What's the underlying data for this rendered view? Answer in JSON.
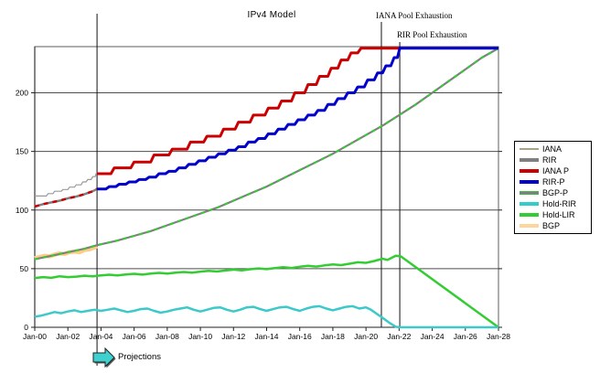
{
  "annotations": {
    "projections": "Projections"
  },
  "chart_data": {
    "type": "line",
    "title": "IPv4 Model",
    "xlabel": "",
    "ylabel": "",
    "x_unit": "years since Jan-2000",
    "x_range_years": [
      0,
      28
    ],
    "ylim": [
      0,
      239
    ],
    "y_ticks": [
      0,
      50,
      100,
      150,
      200
    ],
    "x_tick_labels": [
      "Jan-00",
      "Jan-02",
      "Jan-04",
      "Jan-06",
      "Jan-08",
      "Jan-10",
      "Jan-12",
      "Jan-14",
      "Jan-16",
      "Jan-18",
      "Jan-20",
      "Jan-22",
      "Jan-24",
      "Jan-26",
      "Jan-28"
    ],
    "grid": "horizontal",
    "legend_position": "right",
    "markers": [
      {
        "name": "projection-start",
        "t": 3.76,
        "label": ""
      },
      {
        "name": "iana-pool-exhaustion",
        "t": 20.93,
        "label": "IANA Pool Exhaustion"
      },
      {
        "name": "rir-pool-exhaustion",
        "t": 22.04,
        "label": "RIR Pool Exhaustion"
      }
    ],
    "series": [
      {
        "name": "BGP",
        "color": "#ffcc88",
        "width": 4.5,
        "points": [
          [
            0,
            59
          ],
          [
            0.3,
            60
          ],
          [
            0.6,
            61
          ],
          [
            0.9,
            60.5
          ],
          [
            1.2,
            62
          ],
          [
            1.5,
            63
          ],
          [
            1.8,
            62.5
          ],
          [
            2.1,
            64
          ],
          [
            2.4,
            64.5
          ],
          [
            2.7,
            64
          ],
          [
            3,
            66
          ],
          [
            3.3,
            66.5
          ],
          [
            3.6,
            68
          ],
          [
            3.76,
            69
          ]
        ]
      },
      {
        "name": "BGP-P",
        "color": "#7f7f7f",
        "width": 2.2,
        "overlay": "#33cc33",
        "dash": "4 5",
        "points": [
          [
            0,
            58
          ],
          [
            1,
            61
          ],
          [
            2,
            64
          ],
          [
            3,
            67
          ],
          [
            3.76,
            70
          ],
          [
            5,
            74
          ],
          [
            6,
            78
          ],
          [
            7,
            82
          ],
          [
            8,
            87
          ],
          [
            9,
            92
          ],
          [
            10,
            97
          ],
          [
            11,
            102
          ],
          [
            12,
            108
          ],
          [
            13,
            114
          ],
          [
            14,
            120
          ],
          [
            15,
            127
          ],
          [
            16,
            134
          ],
          [
            17,
            141
          ],
          [
            18,
            148
          ],
          [
            19,
            156
          ],
          [
            20,
            164
          ],
          [
            21,
            172
          ],
          [
            22,
            181
          ],
          [
            23,
            190
          ],
          [
            24,
            200
          ],
          [
            25,
            210
          ],
          [
            26,
            220
          ],
          [
            27,
            230
          ],
          [
            28,
            238
          ]
        ]
      },
      {
        "name": "RIR",
        "color": "#7f7f7f",
        "width": 2.5,
        "overlay": "#cc0000",
        "dash": "5 5",
        "points": [
          [
            0,
            103
          ],
          [
            0.5,
            105
          ],
          [
            1,
            106.5
          ],
          [
            1.5,
            108
          ],
          [
            2,
            110
          ],
          [
            2.5,
            111.5
          ],
          [
            3,
            113.5
          ],
          [
            3.5,
            116
          ],
          [
            3.76,
            118
          ]
        ]
      },
      {
        "name": "IANA",
        "color": "#999999",
        "width": 1.2,
        "points": [
          [
            0,
            112
          ],
          [
            0.7,
            112
          ],
          [
            0.8,
            114
          ],
          [
            1.1,
            114
          ],
          [
            1.2,
            116
          ],
          [
            1.6,
            116
          ],
          [
            1.7,
            117.5
          ],
          [
            2,
            117.5
          ],
          [
            2.1,
            119.5
          ],
          [
            2.4,
            119.5
          ],
          [
            2.5,
            121.5
          ],
          [
            2.8,
            121.5
          ],
          [
            2.9,
            124
          ],
          [
            3.1,
            124
          ],
          [
            3.2,
            126
          ],
          [
            3.4,
            126
          ],
          [
            3.5,
            128.5
          ],
          [
            3.65,
            128.5
          ],
          [
            3.7,
            131
          ],
          [
            3.76,
            131
          ]
        ]
      },
      {
        "name": "IANA P",
        "color": "#cc0000",
        "width": 3,
        "points": [
          [
            3.76,
            131
          ],
          [
            4.6,
            131
          ],
          [
            4.8,
            136
          ],
          [
            5.8,
            136
          ],
          [
            6,
            141
          ],
          [
            7,
            141
          ],
          [
            7.2,
            147
          ],
          [
            8.1,
            147
          ],
          [
            8.3,
            152
          ],
          [
            9.2,
            152
          ],
          [
            9.4,
            158
          ],
          [
            10.2,
            158
          ],
          [
            10.4,
            163
          ],
          [
            11.2,
            163
          ],
          [
            11.4,
            169
          ],
          [
            12.1,
            169
          ],
          [
            12.3,
            175
          ],
          [
            13,
            175
          ],
          [
            13.2,
            181
          ],
          [
            13.9,
            181
          ],
          [
            14.1,
            187
          ],
          [
            14.7,
            187
          ],
          [
            14.9,
            193
          ],
          [
            15.5,
            193
          ],
          [
            15.7,
            200
          ],
          [
            16.3,
            200
          ],
          [
            16.5,
            207
          ],
          [
            17,
            207
          ],
          [
            17.2,
            214
          ],
          [
            17.7,
            214
          ],
          [
            17.9,
            221
          ],
          [
            18.3,
            221
          ],
          [
            18.5,
            228
          ],
          [
            18.9,
            228
          ],
          [
            19.1,
            234
          ],
          [
            19.5,
            234
          ],
          [
            19.7,
            238
          ],
          [
            22.04,
            238
          ]
        ]
      },
      {
        "name": "RIR-P",
        "color": "#0000cc",
        "width": 3,
        "points": [
          [
            3.76,
            118
          ],
          [
            4.3,
            118
          ],
          [
            4.5,
            120
          ],
          [
            4.9,
            120
          ],
          [
            5.1,
            122
          ],
          [
            5.5,
            122
          ],
          [
            5.7,
            124
          ],
          [
            6.1,
            124
          ],
          [
            6.3,
            126
          ],
          [
            6.7,
            126
          ],
          [
            6.9,
            128
          ],
          [
            7.3,
            128
          ],
          [
            7.5,
            131
          ],
          [
            7.9,
            131
          ],
          [
            8.1,
            133
          ],
          [
            8.5,
            133
          ],
          [
            8.7,
            136
          ],
          [
            9.1,
            136
          ],
          [
            9.3,
            139
          ],
          [
            9.7,
            139
          ],
          [
            9.9,
            142
          ],
          [
            10.3,
            142
          ],
          [
            10.5,
            145
          ],
          [
            10.9,
            145
          ],
          [
            11.1,
            148
          ],
          [
            11.5,
            148
          ],
          [
            11.7,
            151
          ],
          [
            12.1,
            151
          ],
          [
            12.3,
            154
          ],
          [
            12.7,
            154
          ],
          [
            12.9,
            158
          ],
          [
            13.3,
            158
          ],
          [
            13.5,
            161
          ],
          [
            13.9,
            161
          ],
          [
            14.1,
            165
          ],
          [
            14.5,
            165
          ],
          [
            14.7,
            169
          ],
          [
            15.1,
            169
          ],
          [
            15.3,
            173
          ],
          [
            15.7,
            173
          ],
          [
            15.9,
            177
          ],
          [
            16.3,
            177
          ],
          [
            16.5,
            181
          ],
          [
            16.9,
            181
          ],
          [
            17.1,
            185
          ],
          [
            17.5,
            185
          ],
          [
            17.7,
            190
          ],
          [
            18.1,
            190
          ],
          [
            18.3,
            195
          ],
          [
            18.7,
            195
          ],
          [
            18.9,
            200
          ],
          [
            19.3,
            200
          ],
          [
            19.5,
            205
          ],
          [
            19.9,
            205
          ],
          [
            20.1,
            211
          ],
          [
            20.5,
            211
          ],
          [
            20.7,
            217
          ],
          [
            21,
            217
          ],
          [
            21.2,
            223
          ],
          [
            21.5,
            223
          ],
          [
            21.7,
            230
          ],
          [
            21.9,
            230
          ],
          [
            22.04,
            238
          ],
          [
            28,
            238
          ]
        ]
      },
      {
        "name": "Hold-LIR",
        "color": "#33cc33",
        "width": 2.5,
        "points": [
          [
            0,
            42
          ],
          [
            0.5,
            42.8
          ],
          [
            1,
            42.2
          ],
          [
            1.5,
            43.5
          ],
          [
            2,
            42.8
          ],
          [
            2.5,
            43.2
          ],
          [
            3,
            44
          ],
          [
            3.5,
            43.4
          ],
          [
            4,
            44.2
          ],
          [
            4.5,
            44.8
          ],
          [
            5,
            44.2
          ],
          [
            5.5,
            45
          ],
          [
            6,
            45.6
          ],
          [
            6.5,
            44.9
          ],
          [
            7,
            45.8
          ],
          [
            7.5,
            46.4
          ],
          [
            8,
            45.8
          ],
          [
            8.5,
            46.6
          ],
          [
            9,
            47.2
          ],
          [
            9.5,
            46.6
          ],
          [
            10,
            47.5
          ],
          [
            10.5,
            48.2
          ],
          [
            11,
            47.6
          ],
          [
            11.5,
            48.4
          ],
          [
            12,
            49.2
          ],
          [
            12.5,
            48.6
          ],
          [
            13,
            49.5
          ],
          [
            13.5,
            50.2
          ],
          [
            14,
            49.6
          ],
          [
            14.5,
            50.5
          ],
          [
            15,
            51.2
          ],
          [
            15.5,
            50.6
          ],
          [
            16,
            51.6
          ],
          [
            16.5,
            52.4
          ],
          [
            17,
            51.8
          ],
          [
            17.5,
            52.8
          ],
          [
            18,
            53.6
          ],
          [
            18.5,
            53
          ],
          [
            19,
            54.2
          ],
          [
            19.5,
            55.4
          ],
          [
            20,
            55
          ],
          [
            20.5,
            56.5
          ],
          [
            21,
            58.5
          ],
          [
            21.3,
            57.5
          ],
          [
            21.8,
            61
          ],
          [
            22.1,
            60.5
          ],
          [
            28,
            0
          ]
        ]
      },
      {
        "name": "Hold-RIR",
        "color": "#3cc9c9",
        "width": 2.5,
        "points": [
          [
            0,
            9
          ],
          [
            0.4,
            10
          ],
          [
            0.8,
            11.5
          ],
          [
            1.2,
            13
          ],
          [
            1.6,
            12
          ],
          [
            2,
            13.5
          ],
          [
            2.4,
            14.5
          ],
          [
            2.8,
            13
          ],
          [
            3.2,
            14
          ],
          [
            3.6,
            15
          ],
          [
            4,
            14
          ],
          [
            4.4,
            15
          ],
          [
            4.8,
            16
          ],
          [
            5.2,
            14.5
          ],
          [
            5.6,
            13
          ],
          [
            6,
            14
          ],
          [
            6.4,
            15.5
          ],
          [
            6.8,
            16
          ],
          [
            7.2,
            14
          ],
          [
            7.6,
            12.5
          ],
          [
            8,
            13.5
          ],
          [
            8.4,
            15
          ],
          [
            8.8,
            16
          ],
          [
            9.2,
            17
          ],
          [
            9.6,
            15
          ],
          [
            10,
            13.5
          ],
          [
            10.4,
            15
          ],
          [
            10.8,
            16.5
          ],
          [
            11.2,
            17
          ],
          [
            11.6,
            15
          ],
          [
            12,
            13.5
          ],
          [
            12.4,
            15
          ],
          [
            12.8,
            17
          ],
          [
            13.2,
            17.5
          ],
          [
            13.6,
            15.5
          ],
          [
            14,
            14
          ],
          [
            14.4,
            15.5
          ],
          [
            14.8,
            17
          ],
          [
            15.2,
            17.5
          ],
          [
            15.6,
            15.5
          ],
          [
            16,
            14
          ],
          [
            16.4,
            16
          ],
          [
            16.8,
            17.5
          ],
          [
            17.2,
            18
          ],
          [
            17.6,
            16
          ],
          [
            18,
            14.5
          ],
          [
            18.4,
            16
          ],
          [
            18.8,
            17.5
          ],
          [
            19.2,
            18
          ],
          [
            19.6,
            16
          ],
          [
            20,
            17
          ],
          [
            20.3,
            15
          ],
          [
            20.6,
            12
          ],
          [
            21,
            8
          ],
          [
            21.4,
            4
          ],
          [
            21.8,
            0.5
          ],
          [
            22,
            0
          ],
          [
            28,
            0
          ]
        ]
      }
    ],
    "legend": [
      {
        "label": "IANA",
        "color": "#a8a385",
        "thin": true
      },
      {
        "label": "RIR",
        "color": "#7f7f7f"
      },
      {
        "label": "IANA P",
        "color": "#cc0000"
      },
      {
        "label": "RIR-P",
        "color": "#0000cc"
      },
      {
        "label": "BGP-P",
        "color": "#7f7f7f",
        "accent": "#44bb44"
      },
      {
        "label": "Hold-RIR",
        "color": "#33cccc"
      },
      {
        "label": "Hold-LIR",
        "color": "#33cc33"
      },
      {
        "label": "BGP",
        "color": "#ffd699"
      }
    ]
  }
}
